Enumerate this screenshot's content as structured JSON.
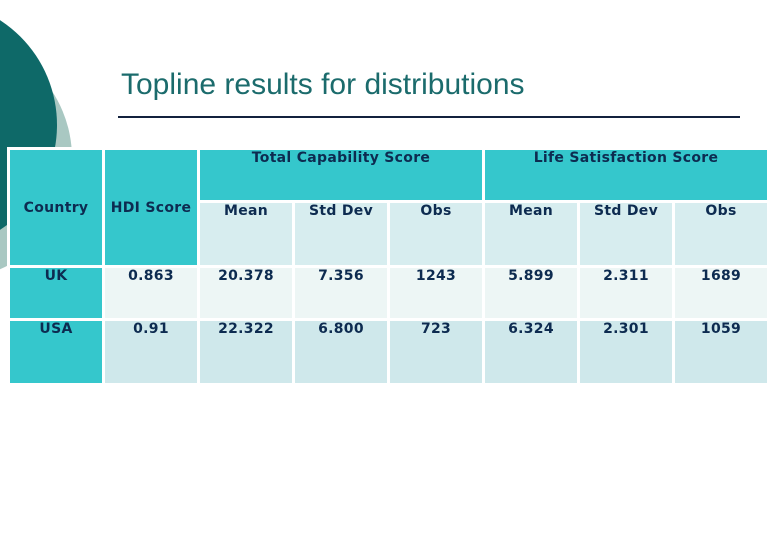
{
  "slide": {
    "title": "Topline results for distributions"
  },
  "table": {
    "country_header": "Country",
    "hdi_header": "HDI Score",
    "groups": [
      {
        "label": "Total Capability Score"
      },
      {
        "label": "Life Satisfaction Score"
      }
    ],
    "sub_headers": [
      "Mean",
      "Std Dev",
      "Obs",
      "Mean",
      "Std Dev",
      "Obs"
    ],
    "rows": [
      {
        "cells": [
          "UK",
          "0.863",
          "20.378",
          "7.356",
          "1243",
          "5.899",
          "2.311",
          "1689"
        ]
      },
      {
        "cells": [
          "USA",
          "0.91",
          "22.322",
          "6.800",
          "723",
          "6.324",
          "2.301",
          "1059"
        ]
      }
    ]
  },
  "colors": {
    "header_teal": "#35c7cc",
    "dark_circle": "#0e6968",
    "sage_circle": "#a9c8c2",
    "title_text": "#1b6b6c",
    "table_text": "#0d2b50",
    "subheader_bg": "#d7edef",
    "row_uk_bg": "#edf6f5",
    "row_usa_bg": "#cfe8eb"
  }
}
